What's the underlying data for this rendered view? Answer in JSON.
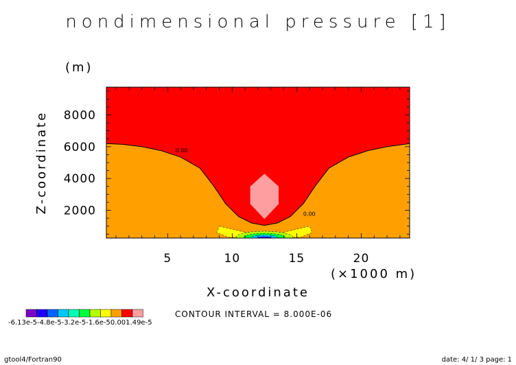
{
  "chart_data": {
    "type": "heatmap",
    "title": "nondimensional pressure [1]",
    "xlabel": "X-coordinate",
    "ylabel": "Z-coordinate",
    "x_unit": "(×1000 m)",
    "y_unit": "(m)",
    "xlim": [
      0.25,
      23.75
    ],
    "ylim": [
      250,
      9750
    ],
    "x_ticks": [
      5,
      10,
      15,
      20
    ],
    "y_ticks": [
      2000,
      4000,
      6000,
      8000
    ],
    "x_tick_labels": [
      "5",
      "10",
      "15",
      "20"
    ],
    "y_tick_labels": [
      "2000",
      "4000",
      "6000",
      "8000"
    ],
    "grid": false,
    "legend_position": "bottom-left",
    "contour_interval_text": "CONTOUR INTERVAL = 8.000E-06",
    "contour_labels": [
      {
        "x": 5.6,
        "z": 5650,
        "text": "0.00"
      },
      {
        "x": 15.5,
        "z": 1650,
        "text": "0.00"
      }
    ],
    "colorbar": {
      "colors": [
        "#7a00c8",
        "#1e00ff",
        "#0064ff",
        "#00c8ff",
        "#00ffb4",
        "#00ff3c",
        "#b4ff00",
        "#ffff00",
        "#ffa000",
        "#ff0000",
        "#ff9ea0"
      ],
      "labels": [
        "-6.13e-5",
        "-4.8e-5",
        "-3.2e-5",
        "-1.6e-5",
        "0.00",
        "1.49e-5"
      ],
      "label_text": "-6.13e-5-4.8e-5-3.2e-5-1.6e-50.001.49e-5"
    },
    "regions": [
      {
        "name": "background",
        "color": "#ff0000",
        "range": "> 0.00"
      },
      {
        "name": "lower flanks",
        "color": "#ffa000",
        "range": "< 0.00"
      },
      {
        "name": "central maximum",
        "color": "#ff9ea0",
        "x": 12.5,
        "z": 2850,
        "range": "> 8.0e-6"
      },
      {
        "name": "yellow region",
        "color": "#ffff00",
        "x": 12.5,
        "z": 600
      },
      {
        "name": "lime region",
        "color": "#b4ff00",
        "x": 12.5,
        "z": 550
      },
      {
        "name": "green region",
        "color": "#00ff3c",
        "x": 12.5,
        "z": 450
      },
      {
        "name": "cyan region",
        "color": "#00c8ff",
        "x": 12.5,
        "z": 380
      },
      {
        "name": "blue minimum",
        "color": "#1e00ff",
        "x": 12.5,
        "z": 300
      }
    ],
    "zero_contour": [
      [
        0.25,
        6200
      ],
      [
        1.5,
        6150
      ],
      [
        3.0,
        6000
      ],
      [
        4.5,
        5750
      ],
      [
        6.0,
        5350
      ],
      [
        7.5,
        4650
      ],
      [
        8.5,
        3600
      ],
      [
        9.5,
        2400
      ],
      [
        10.5,
        1600
      ],
      [
        11.5,
        1200
      ],
      [
        12.5,
        1050
      ],
      [
        13.5,
        1200
      ],
      [
        14.5,
        1600
      ],
      [
        15.5,
        2400
      ],
      [
        16.5,
        3600
      ],
      [
        17.5,
        4650
      ],
      [
        19.0,
        5350
      ],
      [
        20.5,
        5750
      ],
      [
        22.0,
        6000
      ],
      [
        23.75,
        6200
      ]
    ]
  },
  "footer": {
    "left": "gtool4/Fortran90",
    "right": "date: 4/ 1/ 3 page: 1"
  }
}
